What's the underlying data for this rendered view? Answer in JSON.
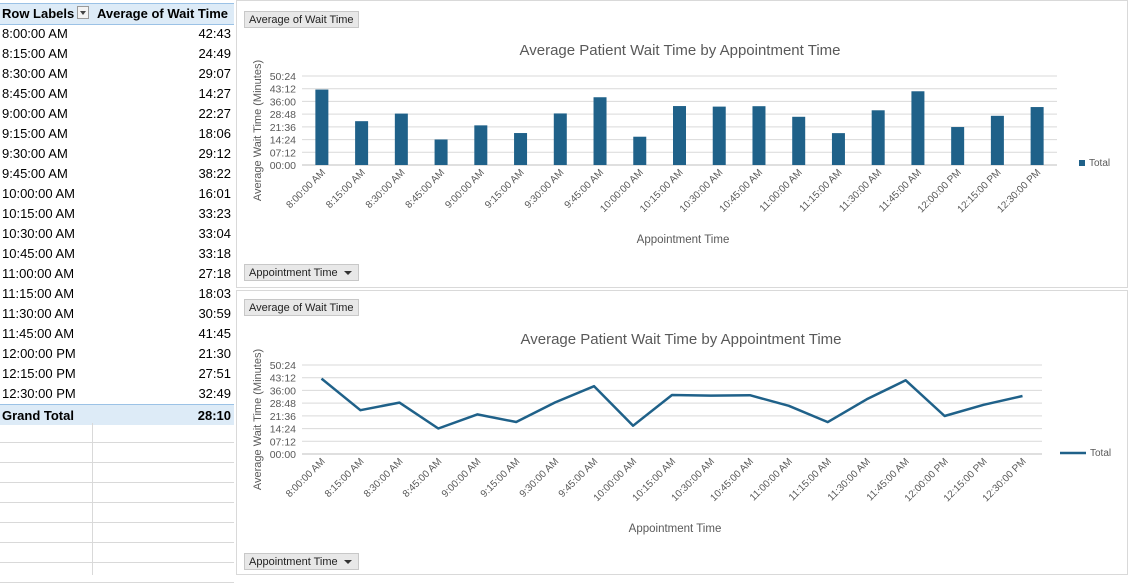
{
  "pivot": {
    "header": {
      "row_labels": "Row Labels",
      "value_header": "Average of Wait Time"
    },
    "rows": [
      {
        "label": "8:00:00 AM",
        "value": "42:43"
      },
      {
        "label": "8:15:00 AM",
        "value": "24:49"
      },
      {
        "label": "8:30:00 AM",
        "value": "29:07"
      },
      {
        "label": "8:45:00 AM",
        "value": "14:27"
      },
      {
        "label": "9:00:00 AM",
        "value": "22:27"
      },
      {
        "label": "9:15:00 AM",
        "value": "18:06"
      },
      {
        "label": "9:30:00 AM",
        "value": "29:12"
      },
      {
        "label": "9:45:00 AM",
        "value": "38:22"
      },
      {
        "label": "10:00:00 AM",
        "value": "16:01"
      },
      {
        "label": "10:15:00 AM",
        "value": "33:23"
      },
      {
        "label": "10:30:00 AM",
        "value": "33:04"
      },
      {
        "label": "10:45:00 AM",
        "value": "33:18"
      },
      {
        "label": "11:00:00 AM",
        "value": "27:18"
      },
      {
        "label": "11:15:00 AM",
        "value": "18:03"
      },
      {
        "label": "11:30:00 AM",
        "value": "30:59"
      },
      {
        "label": "11:45:00 AM",
        "value": "41:45"
      },
      {
        "label": "12:00:00 PM",
        "value": "21:30"
      },
      {
        "label": "12:15:00 PM",
        "value": "27:51"
      },
      {
        "label": "12:30:00 PM",
        "value": "32:49"
      }
    ],
    "grand_total": {
      "label": "Grand Total",
      "value": "28:10"
    }
  },
  "chart_data": [
    {
      "type": "bar",
      "title": "Average Patient Wait Time by Appointment Time",
      "xlabel": "Appointment Time",
      "ylabel": "Average Wait Time (Minutes)",
      "value_field_button": "Average of Wait Time",
      "axis_field_button": "Appointment Time",
      "legend_position": "right",
      "color": "#1f6189",
      "ylim": [
        0,
        3024
      ],
      "yticks": [
        "00:00",
        "07:12",
        "14:24",
        "21:36",
        "28:48",
        "36:00",
        "43:12",
        "50:24"
      ],
      "categories": [
        "8:00:00 AM",
        "8:15:00 AM",
        "8:30:00 AM",
        "8:45:00 AM",
        "9:00:00 AM",
        "9:15:00 AM",
        "9:30:00 AM",
        "9:45:00 AM",
        "10:00:00 AM",
        "10:15:00 AM",
        "10:30:00 AM",
        "10:45:00 AM",
        "11:00:00 AM",
        "11:15:00 AM",
        "11:30:00 AM",
        "11:45:00 AM",
        "12:00:00 PM",
        "12:15:00 PM",
        "12:30:00 PM"
      ],
      "series": [
        {
          "name": "Total",
          "values": [
            2563,
            1489,
            1747,
            867,
            1347,
            1086,
            1752,
            2302,
            961,
            2003,
            1984,
            1998,
            1638,
            1083,
            1859,
            2505,
            1290,
            1671,
            1969
          ]
        }
      ]
    },
    {
      "type": "line",
      "title": "Average Patient Wait Time by Appointment Time",
      "xlabel": "Appointment Time",
      "ylabel": "Average Wait Time (Minutes)",
      "value_field_button": "Average of Wait Time",
      "axis_field_button": "Appointment Time",
      "legend_position": "right",
      "color": "#1f6189",
      "ylim": [
        0,
        3024
      ],
      "yticks": [
        "00:00",
        "07:12",
        "14:24",
        "21:36",
        "28:48",
        "36:00",
        "43:12",
        "50:24"
      ],
      "categories": [
        "8:00:00 AM",
        "8:15:00 AM",
        "8:30:00 AM",
        "8:45:00 AM",
        "9:00:00 AM",
        "9:15:00 AM",
        "9:30:00 AM",
        "9:45:00 AM",
        "10:00:00 AM",
        "10:15:00 AM",
        "10:30:00 AM",
        "10:45:00 AM",
        "11:00:00 AM",
        "11:15:00 AM",
        "11:30:00 AM",
        "11:45:00 AM",
        "12:00:00 PM",
        "12:15:00 PM",
        "12:30:00 PM"
      ],
      "series": [
        {
          "name": "Total",
          "values": [
            2563,
            1489,
            1747,
            867,
            1347,
            1086,
            1752,
            2302,
            961,
            2003,
            1984,
            1998,
            1638,
            1083,
            1859,
            2505,
            1290,
            1671,
            1969
          ]
        }
      ]
    }
  ]
}
